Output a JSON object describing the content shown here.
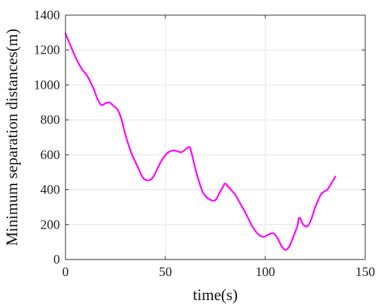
{
  "chart_data": {
    "type": "line",
    "title": "",
    "xlabel": "time(s)",
    "ylabel": "Minimum separation distances(m)",
    "xlim": [
      0,
      150
    ],
    "ylim": [
      0,
      1400
    ],
    "xticks": [
      0,
      50,
      100,
      150
    ],
    "yticks": [
      0,
      200,
      400,
      600,
      800,
      1000,
      1200,
      1400
    ],
    "grid": true,
    "legend": "none",
    "series": [
      {
        "color": "#ff00ff",
        "x": [
          0,
          2,
          5,
          8,
          11,
          14,
          16,
          18,
          20,
          22,
          24,
          26,
          28,
          30,
          33,
          36,
          39,
          42,
          44,
          46,
          48,
          51,
          54,
          56,
          58,
          60,
          62,
          63,
          65,
          67,
          69,
          72,
          75,
          77,
          79,
          80,
          82,
          85,
          87,
          90,
          93,
          96,
          99,
          102,
          104,
          106,
          108,
          110,
          112,
          114,
          116,
          117,
          119,
          121,
          123,
          125,
          128,
          131,
          133,
          135
        ],
        "y": [
          1295,
          1240,
          1160,
          1095,
          1050,
          980,
          920,
          885,
          895,
          900,
          880,
          860,
          805,
          715,
          610,
          535,
          465,
          455,
          475,
          520,
          565,
          610,
          625,
          620,
          615,
          630,
          645,
          615,
          520,
          440,
          380,
          345,
          340,
          380,
          420,
          435,
          410,
          370,
          330,
          270,
          200,
          150,
          130,
          145,
          150,
          125,
          80,
          55,
          75,
          130,
          190,
          240,
          200,
          190,
          230,
          300,
          375,
          400,
          435,
          475
        ]
      }
    ]
  }
}
